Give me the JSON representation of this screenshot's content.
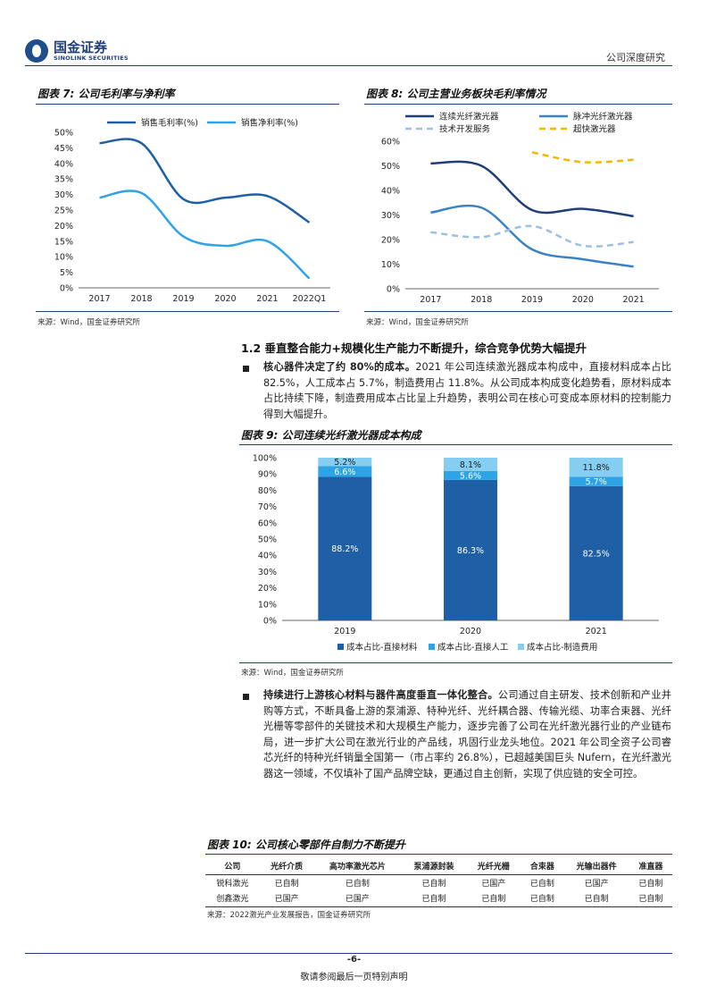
{
  "header": {
    "logo_cn": "国金证券",
    "logo_en": "SINOLINK SECURITIES",
    "right": "公司深度研究"
  },
  "fig7": {
    "title": "图表 7:  公司毛利率与净利率",
    "source": "来源：Wind，国金证券研究所"
  },
  "fig8": {
    "title": "图表 8:  公司主营业务板块毛利率情况",
    "source": "来源：Wind，国金证券研究所"
  },
  "section": {
    "heading": "1.2 垂直整合能力+规模化生产能力不断提升，综合竞争优势大幅提升"
  },
  "para1": {
    "bold": "核心器件决定了约 80%的成本。",
    "text": "2021 年公司连续激光器成本构成中，直接材料成本占比 82.5%，人工成本占 5.7%，制造费用占 11.8%。从公司成本构成变化趋势看，原材料成本占比持续下降，制造费用成本占比呈上升趋势，表明公司在核心可变成本原材料的控制能力得到大幅提升。"
  },
  "fig9": {
    "title": "图表 9:  公司连续光纤激光器成本构成",
    "source": "来源：Wind，国金证券研究所"
  },
  "para2": {
    "bold": "持续进行上游核心材料与器件高度垂直一体化整合。",
    "text": "公司通过自主研发、技术创新和产业并购等方式，不断具备上游的泵浦源、特种光纤、光纤耦合器、传输光缆、功率合束器、光纤光栅等零部件的关键技术和大规模生产能力，逐步完善了公司在光纤激光器行业的产业链布局，进一步扩大公司在激光行业的产品线，巩固行业龙头地位。2021 年公司全资子公司睿芯光纤的特种光纤销量全国第一（市占率约 26.8%），已超越美国巨头 Nufern，在光纤激光器这一领域，不仅填补了国产品牌空缺，更通过自主创新，实现了供应链的安全可控。"
  },
  "fig10": {
    "title": "图表 10:  公司核心零部件自制力不断提升",
    "headers": [
      "公司",
      "光纤介质",
      "高功率激光芯片",
      "泵浦源封装",
      "光纤光栅",
      "合束器",
      "光输出器件",
      "准直器"
    ],
    "rows": [
      [
        "锐科激光",
        "已自制",
        "已自制",
        "已自制",
        "已国产",
        "已自制",
        "已国产",
        "已自制"
      ],
      [
        "创鑫激光",
        "已国产",
        "已国产",
        "已自制",
        "已自制",
        "已自制",
        "已自制",
        "已自制"
      ]
    ],
    "source": "来源：2022激光产业发展报告，国金证券研究所"
  },
  "footer": {
    "page": "-6-",
    "note": "敬请参阅最后一页特别声明"
  },
  "chart_data": [
    {
      "type": "line",
      "x": [
        "2017",
        "2018",
        "2019",
        "2020",
        "2021",
        "2022Q1"
      ],
      "series": [
        {
          "name": "销售毛利率(%)",
          "color": "#1f5fa6",
          "values": [
            46.5,
            46.5,
            28.5,
            29.0,
            29.5,
            21.0
          ]
        },
        {
          "name": "销售净利率(%)",
          "color": "#2ea3e6",
          "values": [
            29.0,
            30.5,
            16.5,
            13.5,
            15.0,
            3.0
          ]
        }
      ],
      "ylim": [
        0,
        50
      ],
      "yticks": [
        "0%",
        "5%",
        "10%",
        "15%",
        "20%",
        "25%",
        "30%",
        "35%",
        "40%",
        "45%",
        "50%"
      ],
      "legend_position": "top"
    },
    {
      "type": "line",
      "x": [
        "2017",
        "2018",
        "2019",
        "2020",
        "2021"
      ],
      "series": [
        {
          "name": "连续光纤激光器",
          "color": "#1f3f7a",
          "dash": "solid",
          "values": [
            51.0,
            50.0,
            32.0,
            32.5,
            29.5
          ]
        },
        {
          "name": "脉冲光纤激光器",
          "color": "#3b82c4",
          "dash": "solid",
          "values": [
            31.0,
            33.0,
            16.0,
            12.0,
            9.0
          ]
        },
        {
          "name": "技术开发服务",
          "color": "#9cbfe2",
          "dash": "dashed",
          "values": [
            23.0,
            21.0,
            25.5,
            17.5,
            19.0
          ]
        },
        {
          "name": "超快激光器",
          "color": "#f5b800",
          "dash": "dashed",
          "values": [
            null,
            null,
            55.5,
            51.5,
            52.5
          ]
        }
      ],
      "ylim": [
        0,
        60
      ],
      "yticks": [
        "0%",
        "10%",
        "20%",
        "30%",
        "40%",
        "50%",
        "60%"
      ],
      "legend_position": "top"
    },
    {
      "type": "bar",
      "stacked": true,
      "categories": [
        "2019",
        "2020",
        "2021"
      ],
      "series": [
        {
          "name": "成本占比-直接材料",
          "color": "#1f5fa6",
          "values": [
            88.2,
            86.3,
            82.5
          ],
          "labels": [
            "88.2%",
            "86.3%",
            "82.5%"
          ]
        },
        {
          "name": "成本占比-直接人工",
          "color": "#2ea3e6",
          "values": [
            6.6,
            5.6,
            5.7
          ],
          "labels": [
            "6.6%",
            "5.6%",
            "5.7%"
          ]
        },
        {
          "name": "成本占比-制造费用",
          "color": "#86cdf2",
          "values": [
            5.2,
            8.1,
            11.8
          ],
          "labels": [
            "5.2%",
            "8.1%",
            "11.8%"
          ]
        }
      ],
      "ylim": [
        0,
        100
      ],
      "yticks": [
        "0%",
        "10%",
        "20%",
        "30%",
        "40%",
        "50%",
        "60%",
        "70%",
        "80%",
        "90%",
        "100%"
      ],
      "legend_position": "bottom"
    }
  ]
}
